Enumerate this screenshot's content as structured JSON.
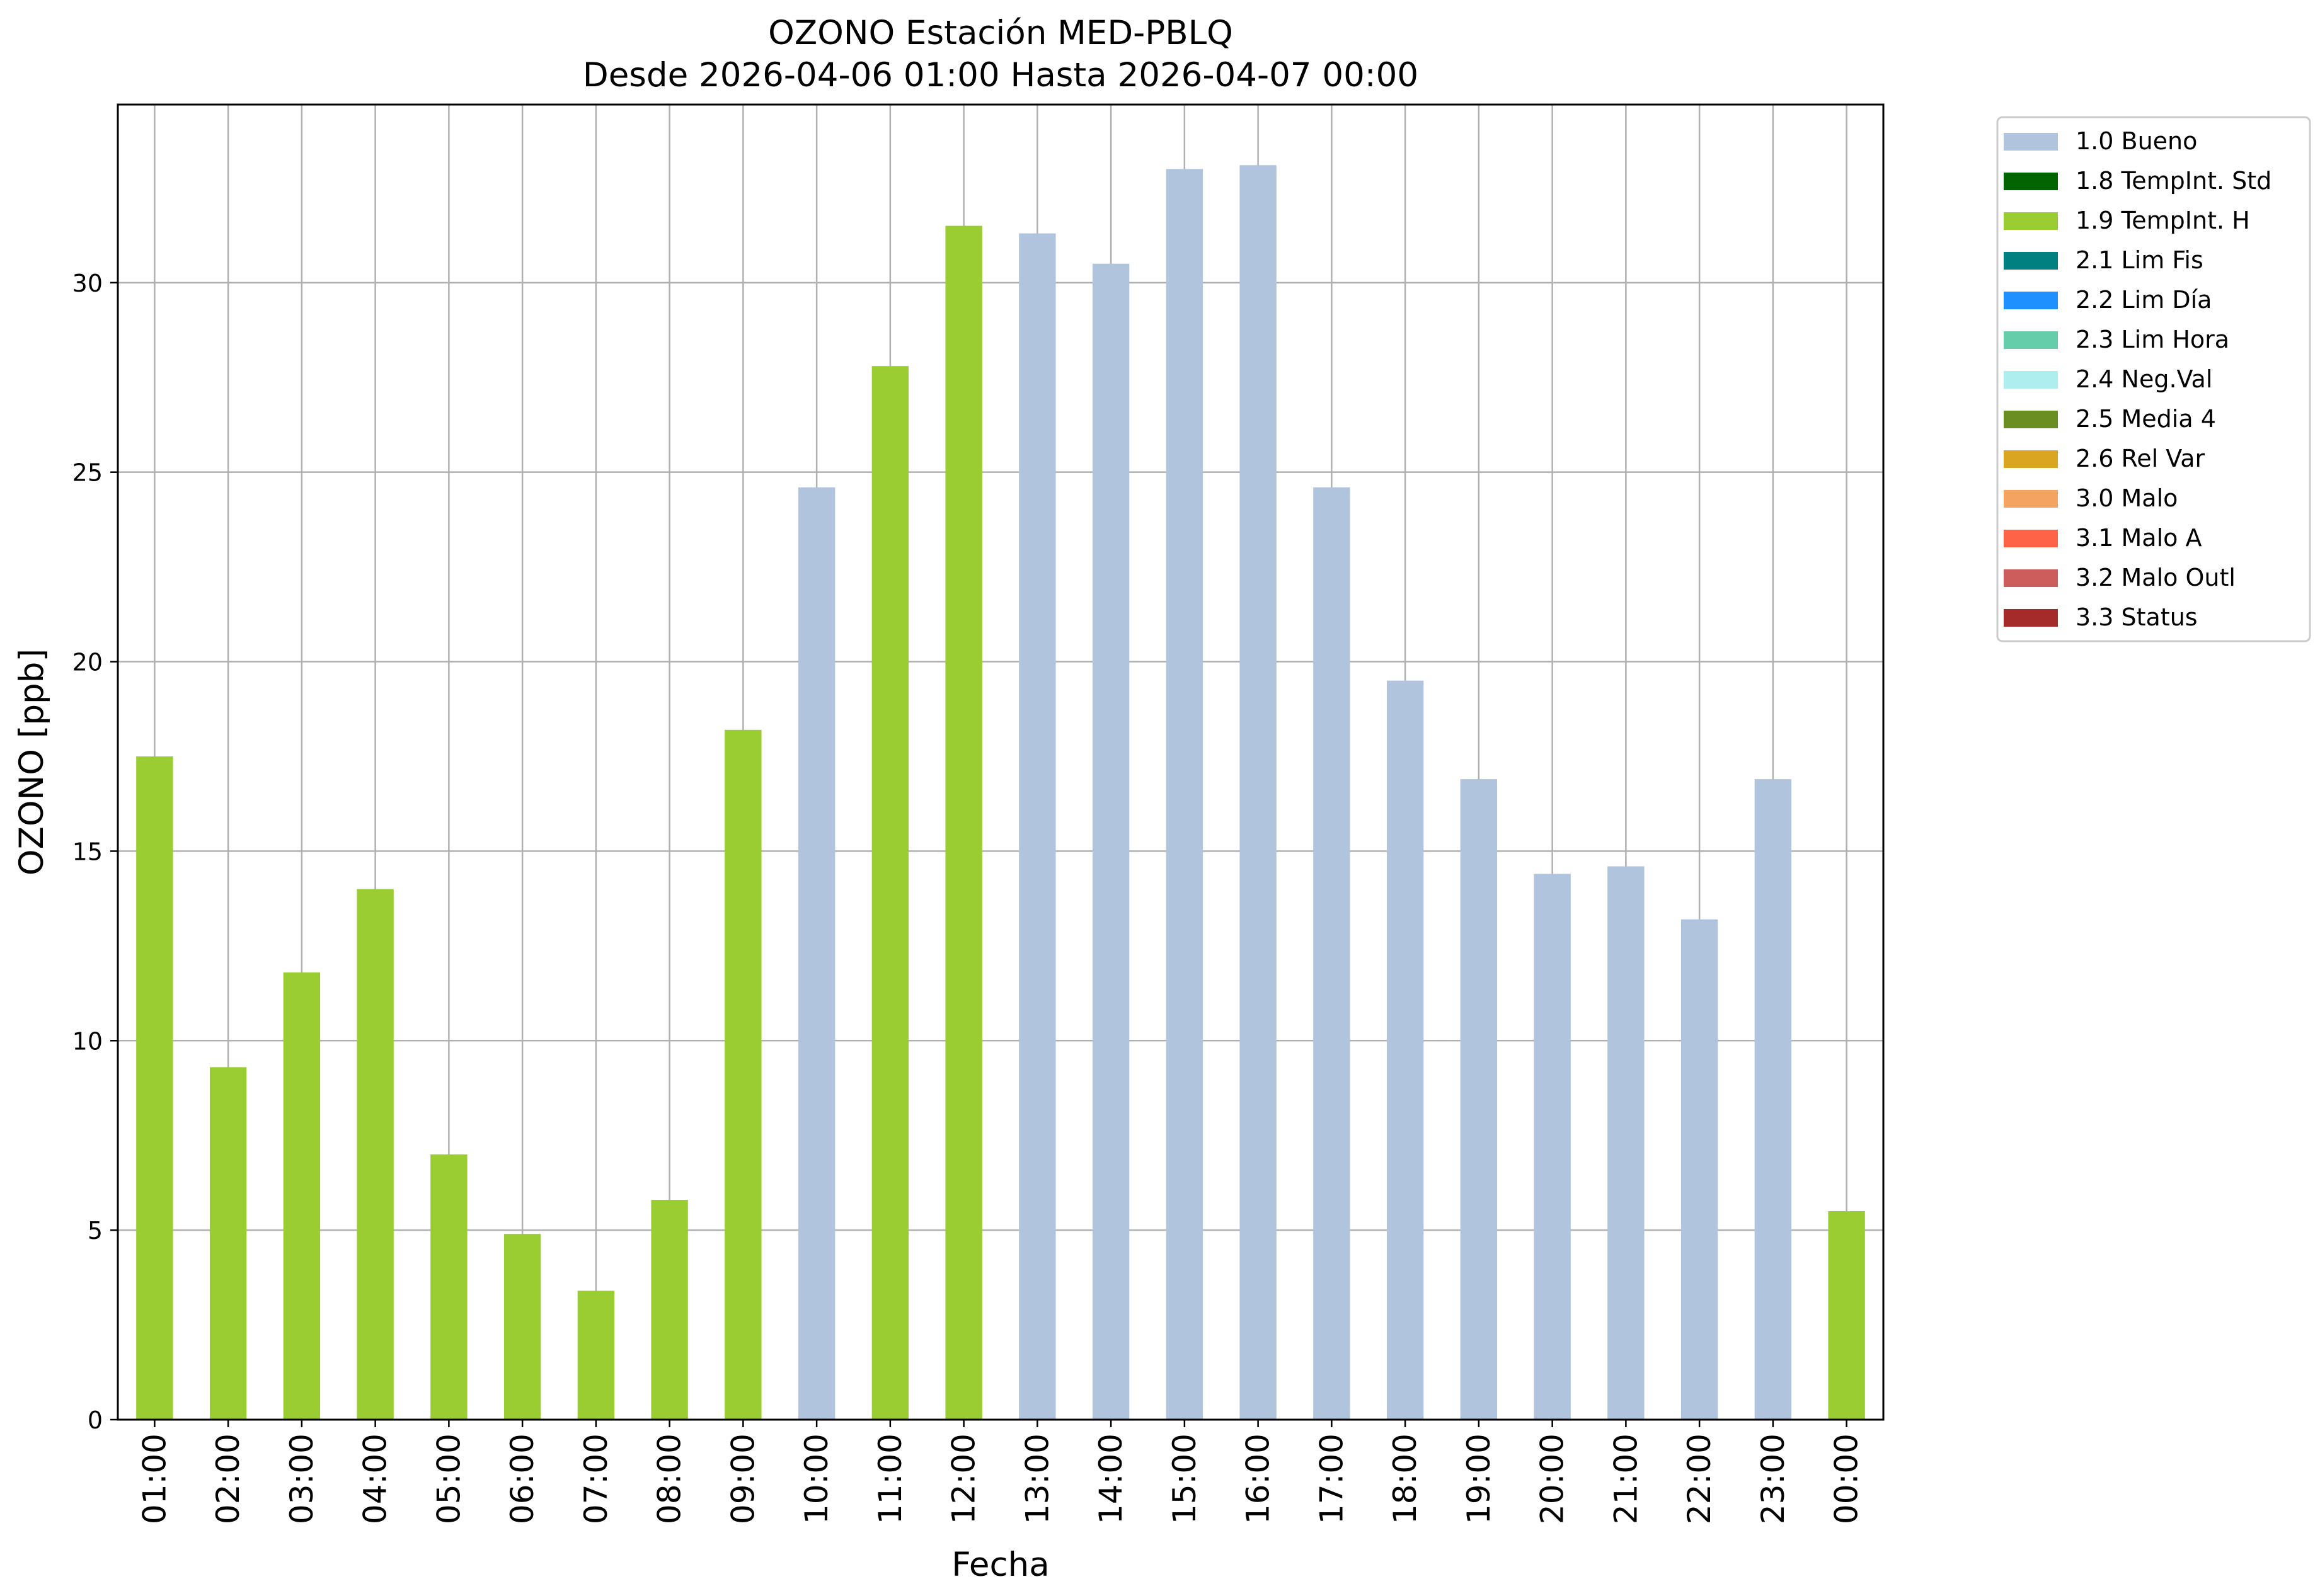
{
  "chart_data": {
    "type": "bar",
    "title": "OZONO Estación MED-PBLQ",
    "subtitle": "Desde 2026-04-06 01:00 Hasta 2026-04-07 00:00",
    "xlabel": "Fecha",
    "ylabel": "OZONO [ppb]",
    "ylim": [
      0,
      34.7
    ],
    "yticks": [
      0,
      5,
      10,
      15,
      20,
      25,
      30
    ],
    "grid": true,
    "legend_position": "outside-right",
    "categories": [
      "01:00",
      "02:00",
      "03:00",
      "04:00",
      "05:00",
      "06:00",
      "07:00",
      "08:00",
      "09:00",
      "10:00",
      "11:00",
      "12:00",
      "13:00",
      "14:00",
      "15:00",
      "16:00",
      "17:00",
      "18:00",
      "19:00",
      "20:00",
      "21:00",
      "22:00",
      "23:00",
      "00:00"
    ],
    "values": [
      17.5,
      9.3,
      11.8,
      14.0,
      7.0,
      4.9,
      3.4,
      5.8,
      18.2,
      24.6,
      27.8,
      31.5,
      31.3,
      30.5,
      33.0,
      33.1,
      24.6,
      19.5,
      16.9,
      14.4,
      14.6,
      13.2,
      16.9,
      5.5
    ],
    "flags": [
      "1.9 TempInt. H",
      "1.9 TempInt. H",
      "1.9 TempInt. H",
      "1.9 TempInt. H",
      "1.9 TempInt. H",
      "1.9 TempInt. H",
      "1.9 TempInt. H",
      "1.9 TempInt. H",
      "1.9 TempInt. H",
      "1.0 Bueno",
      "1.9 TempInt. H",
      "1.9 TempInt. H",
      "1.0 Bueno",
      "1.0 Bueno",
      "1.0 Bueno",
      "1.0 Bueno",
      "1.0 Bueno",
      "1.0 Bueno",
      "1.0 Bueno",
      "1.0 Bueno",
      "1.0 Bueno",
      "1.0 Bueno",
      "1.0 Bueno",
      "1.9 TempInt. H"
    ],
    "legend": [
      {
        "label": "1.0 Bueno",
        "color": "#b0c4de"
      },
      {
        "label": "1.8 TempInt. Std",
        "color": "#006400"
      },
      {
        "label": "1.9 TempInt. H",
        "color": "#9acd32"
      },
      {
        "label": "2.1 Lim Fis",
        "color": "#008080"
      },
      {
        "label": "2.2 Lim Día",
        "color": "#1e90ff"
      },
      {
        "label": "2.3 Lim Hora",
        "color": "#66cdaa"
      },
      {
        "label": "2.4 Neg.Val",
        "color": "#afeeee"
      },
      {
        "label": "2.5 Media 4",
        "color": "#6b8e23"
      },
      {
        "label": "2.6 Rel Var",
        "color": "#daa520"
      },
      {
        "label": "3.0 Malo",
        "color": "#f4a460"
      },
      {
        "label": "3.1 Malo A",
        "color": "#ff6347"
      },
      {
        "label": "3.2 Malo Outl",
        "color": "#cd5c5c"
      },
      {
        "label": "3.3 Status",
        "color": "#a52a2a"
      }
    ]
  }
}
